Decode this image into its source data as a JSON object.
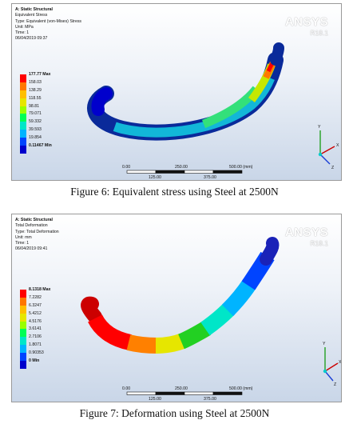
{
  "figure6": {
    "header": [
      "A: Static Structural",
      "Equivalent Stress",
      "Type: Equivalent (von-Mises) Stress",
      "Unit: MPa",
      "Time: 1",
      "06/04/2019 09:37"
    ],
    "brand": "ANSYS",
    "version": "R18.1",
    "legend": [
      "177.77 Max",
      "158.03",
      "138.29",
      "118.55",
      "98.81",
      "79.071",
      "59.332",
      "39.593",
      "19.854",
      "0.11467 Min"
    ],
    "colors": [
      "#ff0000",
      "#ff7700",
      "#ffbf00",
      "#e6e600",
      "#99ff00",
      "#00ff55",
      "#00e6c8",
      "#00b4ff",
      "#0044ff",
      "#0000cc"
    ],
    "scale_top": [
      "0.00",
      "250.00",
      "500.00 (mm)"
    ],
    "scale_bottom": [
      "125.00",
      "375.00"
    ],
    "caption": "Figure 6: Equivalent stress using Steel at 2500N"
  },
  "figure7": {
    "header": [
      "A: Static Structural",
      "Total Deformation",
      "Type: Total Deformation",
      "Unit: mm",
      "Time: 1",
      "06/04/2019 09:41"
    ],
    "brand": "ANSYS",
    "version": "R18.1",
    "legend": [
      "8.1318 Max",
      "7.2282",
      "6.3247",
      "5.4212",
      "4.5176",
      "3.6141",
      "2.7106",
      "1.8071",
      "0.90353",
      "0 Min"
    ],
    "colors": [
      "#ff0000",
      "#ff7700",
      "#ffbf00",
      "#e6e600",
      "#99ff00",
      "#00ff55",
      "#00e6c8",
      "#00b4ff",
      "#0044ff",
      "#0000cc"
    ],
    "scale_top": [
      "0.00",
      "250.00",
      "500.00 (mm)"
    ],
    "scale_bottom": [
      "125.00",
      "375.00"
    ],
    "caption": "Figure 7: Deformation using Steel at 2500N"
  },
  "axes": {
    "x": "X",
    "y": "Y",
    "z": "Z"
  }
}
